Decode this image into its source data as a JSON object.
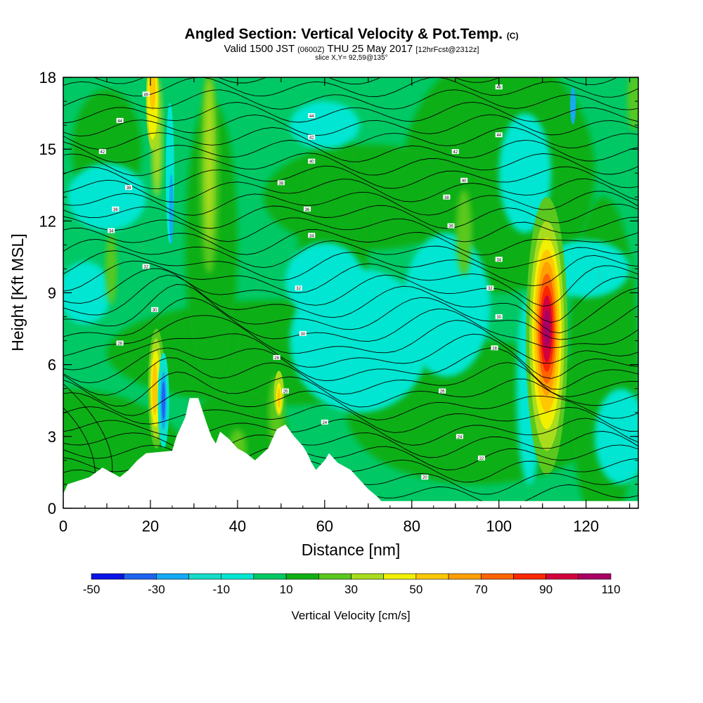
{
  "title": {
    "main": "Angled Section: Vertical Velocity & Pot.Temp.",
    "units": "(C)"
  },
  "subtitle": {
    "valid": "Valid 1500 JST",
    "utc": "(0600Z)",
    "date": "THU 25 May 2017",
    "fcst": "[12hrFcst@2312z]"
  },
  "slice": "slice X,Y= 92,59@135°",
  "chart_data": {
    "type": "heatmap",
    "xlabel": "Distance [nm]",
    "ylabel": "Height [Kft MSL]",
    "xlim": [
      0,
      132
    ],
    "ylim": [
      0,
      18
    ],
    "x_ticks": [
      "0",
      "20",
      "40",
      "60",
      "80",
      "100",
      "120"
    ],
    "y_ticks": [
      "0",
      "3",
      "6",
      "9",
      "12",
      "15",
      "18"
    ],
    "colorbar": {
      "label": "Vertical Velocity [cm/s]",
      "tick_labels": [
        "-50",
        "-30",
        "-10",
        "10",
        "30",
        "50",
        "70",
        "90",
        "110"
      ],
      "levels": [
        -50,
        -40,
        -30,
        -20,
        -10,
        0,
        10,
        20,
        30,
        40,
        50,
        60,
        70,
        80,
        90,
        100,
        110
      ],
      "colors": [
        "#0a14e6",
        "#1e64f0",
        "#14aaf5",
        "#14dcc8",
        "#00e6d2",
        "#00c864",
        "#0faf14",
        "#5ac81e",
        "#aadc1e",
        "#f0f000",
        "#ffc800",
        "#ffa000",
        "#ff6400",
        "#fa2800",
        "#d2003c",
        "#aa0064",
        "#6e0082"
      ],
      "shading_colors": {
        "below_0": "#00e6d2",
        "0_to_10": "#00c864",
        "10_to_20": "#0faf14",
        "20_to_30": "#5ac81e",
        "30_to_40": "#aadc1e"
      }
    },
    "terrain": [
      [
        0,
        0.6
      ],
      [
        1,
        1.0
      ],
      [
        6,
        1.3
      ],
      [
        9,
        1.7
      ],
      [
        13,
        1.3
      ],
      [
        15,
        1.6
      ],
      [
        17,
        2.0
      ],
      [
        19,
        2.3
      ],
      [
        25,
        2.4
      ],
      [
        26,
        3.0
      ],
      [
        28,
        3.8
      ],
      [
        29,
        4.6
      ],
      [
        31,
        4.6
      ],
      [
        33,
        3.5
      ],
      [
        34,
        3.0
      ],
      [
        35,
        2.7
      ],
      [
        36,
        3.2
      ],
      [
        38,
        2.9
      ],
      [
        40,
        2.5
      ],
      [
        42,
        2.3
      ],
      [
        44,
        2.0
      ],
      [
        47,
        2.5
      ],
      [
        49,
        3.3
      ],
      [
        51,
        3.5
      ],
      [
        53,
        3.0
      ],
      [
        55,
        2.6
      ],
      [
        56,
        2.3
      ],
      [
        57,
        1.9
      ],
      [
        58,
        1.6
      ],
      [
        60,
        2.0
      ],
      [
        61,
        2.3
      ],
      [
        63,
        1.9
      ],
      [
        66,
        1.6
      ],
      [
        68,
        1.2
      ],
      [
        70,
        0.8
      ],
      [
        72,
        0.5
      ],
      [
        73,
        0.3
      ],
      [
        100,
        0.3
      ],
      [
        132,
        0.3
      ]
    ],
    "pot_temp_isentropes_C": [
      "24",
      "26",
      "28",
      "30",
      "32",
      "34",
      "36",
      "38",
      "40",
      "42",
      "44",
      "46"
    ],
    "contour_labels": [
      {
        "text": "46",
        "x": 19,
        "y": 17.3
      },
      {
        "text": "44",
        "x": 57,
        "y": 16.4
      },
      {
        "text": "46",
        "x": 100,
        "y": 17.6
      },
      {
        "text": "44",
        "x": 13,
        "y": 16.2
      },
      {
        "text": "42",
        "x": 57,
        "y": 15.5
      },
      {
        "text": "44",
        "x": 100,
        "y": 15.6
      },
      {
        "text": "42",
        "x": 9,
        "y": 14.9
      },
      {
        "text": "40",
        "x": 57,
        "y": 14.5
      },
      {
        "text": "42",
        "x": 90,
        "y": 14.9
      },
      {
        "text": "38",
        "x": 15,
        "y": 13.4
      },
      {
        "text": "38",
        "x": 50,
        "y": 13.6
      },
      {
        "text": "40",
        "x": 92,
        "y": 13.7
      },
      {
        "text": "36",
        "x": 12,
        "y": 12.5
      },
      {
        "text": "36",
        "x": 56,
        "y": 12.5
      },
      {
        "text": "38",
        "x": 88,
        "y": 13.0
      },
      {
        "text": "34",
        "x": 11,
        "y": 11.6
      },
      {
        "text": "34",
        "x": 57,
        "y": 11.4
      },
      {
        "text": "36",
        "x": 89,
        "y": 11.8
      },
      {
        "text": "32",
        "x": 19,
        "y": 10.1
      },
      {
        "text": "32",
        "x": 54,
        "y": 9.2
      },
      {
        "text": "34",
        "x": 100,
        "y": 10.4
      },
      {
        "text": "30",
        "x": 21,
        "y": 8.3
      },
      {
        "text": "30",
        "x": 55,
        "y": 7.3
      },
      {
        "text": "32",
        "x": 98,
        "y": 9.2
      },
      {
        "text": "28",
        "x": 13,
        "y": 6.9
      },
      {
        "text": "28",
        "x": 49,
        "y": 6.3
      },
      {
        "text": "30",
        "x": 100,
        "y": 8.0
      },
      {
        "text": "26",
        "x": 51,
        "y": 4.9
      },
      {
        "text": "26",
        "x": 87,
        "y": 4.9
      },
      {
        "text": "28",
        "x": 99,
        "y": 6.7
      },
      {
        "text": "24",
        "x": 60,
        "y": 3.6
      },
      {
        "text": "24",
        "x": 91,
        "y": 3.0
      },
      {
        "text": "22",
        "x": 96,
        "y": 2.1
      },
      {
        "text": "20",
        "x": 83,
        "y": 1.3
      }
    ],
    "features": [
      {
        "name": "updraft-core",
        "x": 111,
        "y": 7.5,
        "peak": 100
      },
      {
        "name": "updraft-low",
        "x": 22,
        "y": 5.0,
        "peak": 50
      },
      {
        "name": "updraft-upper",
        "x": 20.5,
        "y": 17.0,
        "peak": 50
      },
      {
        "name": "downdraft-low",
        "x": 23,
        "y": 4.5,
        "peak": -40
      }
    ]
  }
}
